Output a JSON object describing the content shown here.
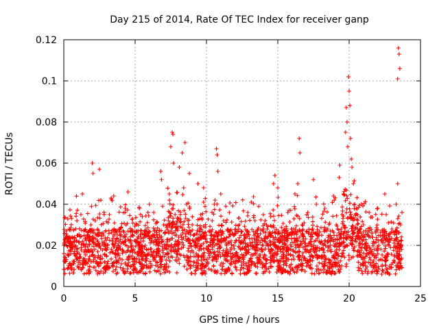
{
  "chart_data": {
    "type": "scatter",
    "title": "Day 215 of 2014, Rate Of TEC Index for receiver ganp",
    "xlabel": "GPS time / hours",
    "ylabel": "ROTI / TECUs",
    "xlim": [
      0,
      25
    ],
    "ylim": [
      0,
      0.12
    ],
    "xticks": [
      0,
      5,
      10,
      15,
      20,
      25
    ],
    "yticks": [
      0,
      0.02,
      0.04,
      0.06,
      0.08,
      0.1,
      0.12
    ],
    "xtick_labels": [
      "0",
      "5",
      "10",
      "15",
      "20",
      "25"
    ],
    "ytick_labels": [
      "0",
      "0.02",
      "0.04",
      "0.06",
      "0.08",
      "0.1",
      "0.12"
    ],
    "grid": true,
    "marker": "+",
    "color": "#ff0000",
    "series": [
      {
        "name": "ROTI",
        "points": [
          [
            0.1,
            0.012
          ],
          [
            0.2,
            0.02
          ],
          [
            0.3,
            0.009
          ],
          [
            0.5,
            0.016
          ],
          [
            0.7,
            0.011
          ],
          [
            0.9,
            0.022
          ],
          [
            1.1,
            0.014
          ],
          [
            1.2,
            0.035
          ],
          [
            1.3,
            0.045
          ],
          [
            1.5,
            0.018
          ],
          [
            1.7,
            0.012
          ],
          [
            1.9,
            0.03
          ],
          [
            2.0,
            0.06
          ],
          [
            2.05,
            0.055
          ],
          [
            2.2,
            0.032
          ],
          [
            2.3,
            0.025
          ],
          [
            2.5,
            0.057
          ],
          [
            2.6,
            0.042
          ],
          [
            2.8,
            0.02
          ],
          [
            3.0,
            0.015
          ],
          [
            3.2,
            0.035
          ],
          [
            3.4,
            0.022
          ],
          [
            3.5,
            0.044
          ],
          [
            3.7,
            0.012
          ],
          [
            3.9,
            0.028
          ],
          [
            4.1,
            0.018
          ],
          [
            4.3,
            0.038
          ],
          [
            4.5,
            0.046
          ],
          [
            4.7,
            0.022
          ],
          [
            4.9,
            0.01
          ],
          [
            5.1,
            0.03
          ],
          [
            5.3,
            0.013
          ],
          [
            5.5,
            0.034
          ],
          [
            5.7,
            0.02
          ],
          [
            5.9,
            0.026
          ],
          [
            6.0,
            0.04
          ],
          [
            6.1,
            0.015
          ],
          [
            6.3,
            0.036
          ],
          [
            6.5,
            0.018
          ],
          [
            6.7,
            0.025
          ],
          [
            6.8,
            0.056
          ],
          [
            6.85,
            0.052
          ],
          [
            7.0,
            0.03
          ],
          [
            7.2,
            0.02
          ],
          [
            7.4,
            0.045
          ],
          [
            7.5,
            0.068
          ],
          [
            7.6,
            0.075
          ],
          [
            7.65,
            0.074
          ],
          [
            7.7,
            0.06
          ],
          [
            7.8,
            0.035
          ],
          [
            7.9,
            0.025
          ],
          [
            8.1,
            0.058
          ],
          [
            8.3,
            0.065
          ],
          [
            8.4,
            0.048
          ],
          [
            8.5,
            0.07
          ],
          [
            8.6,
            0.04
          ],
          [
            8.8,
            0.055
          ],
          [
            9.0,
            0.03
          ],
          [
            9.2,
            0.02
          ],
          [
            9.4,
            0.05
          ],
          [
            9.6,
            0.035
          ],
          [
            9.8,
            0.048
          ],
          [
            10.0,
            0.025
          ],
          [
            10.2,
            0.015
          ],
          [
            10.4,
            0.032
          ],
          [
            10.6,
            0.042
          ],
          [
            10.7,
            0.067
          ],
          [
            10.75,
            0.064
          ],
          [
            10.8,
            0.056
          ],
          [
            11.0,
            0.045
          ],
          [
            11.2,
            0.032
          ],
          [
            11.4,
            0.02
          ],
          [
            11.6,
            0.036
          ],
          [
            11.8,
            0.026
          ],
          [
            12.0,
            0.015
          ],
          [
            12.3,
            0.03
          ],
          [
            12.6,
            0.012
          ],
          [
            12.9,
            0.036
          ],
          [
            13.1,
            0.02
          ],
          [
            13.4,
            0.032
          ],
          [
            13.7,
            0.018
          ],
          [
            14.0,
            0.028
          ],
          [
            14.2,
            0.013
          ],
          [
            14.5,
            0.034
          ],
          [
            14.7,
            0.05
          ],
          [
            14.8,
            0.054
          ],
          [
            15.0,
            0.048
          ],
          [
            15.2,
            0.022
          ],
          [
            15.5,
            0.012
          ],
          [
            15.7,
            0.036
          ],
          [
            16.0,
            0.026
          ],
          [
            16.2,
            0.045
          ],
          [
            16.4,
            0.05
          ],
          [
            16.5,
            0.072
          ],
          [
            16.55,
            0.065
          ],
          [
            16.7,
            0.03
          ],
          [
            16.9,
            0.018
          ],
          [
            17.1,
            0.036
          ],
          [
            17.3,
            0.022
          ],
          [
            17.5,
            0.052
          ],
          [
            17.7,
            0.04
          ],
          [
            17.9,
            0.025
          ],
          [
            18.1,
            0.015
          ],
          [
            18.3,
            0.038
          ],
          [
            18.5,
            0.028
          ],
          [
            18.7,
            0.018
          ],
          [
            18.9,
            0.044
          ],
          [
            19.1,
            0.03
          ],
          [
            19.3,
            0.053
          ],
          [
            19.35,
            0.059
          ],
          [
            19.5,
            0.035
          ],
          [
            19.6,
            0.045
          ],
          [
            19.75,
            0.075
          ],
          [
            19.8,
            0.087
          ],
          [
            19.85,
            0.08
          ],
          [
            19.9,
            0.068
          ],
          [
            19.95,
            0.102
          ],
          [
            20.0,
            0.095
          ],
          [
            20.05,
            0.088
          ],
          [
            20.1,
            0.072
          ],
          [
            20.15,
            0.062
          ],
          [
            20.2,
            0.058
          ],
          [
            20.3,
            0.05
          ],
          [
            20.4,
            0.04
          ],
          [
            20.6,
            0.028
          ],
          [
            20.8,
            0.015
          ],
          [
            21.0,
            0.03
          ],
          [
            21.2,
            0.018
          ],
          [
            21.4,
            0.036
          ],
          [
            21.6,
            0.026
          ],
          [
            21.8,
            0.014
          ],
          [
            22.0,
            0.038
          ],
          [
            22.3,
            0.022
          ],
          [
            22.5,
            0.045
          ],
          [
            22.6,
            0.035
          ],
          [
            22.8,
            0.02
          ],
          [
            23.0,
            0.028
          ],
          [
            23.2,
            0.012
          ],
          [
            23.3,
            0.04
          ],
          [
            23.4,
            0.05
          ],
          [
            23.45,
            0.116
          ],
          [
            23.5,
            0.113
          ],
          [
            23.55,
            0.106
          ],
          [
            23.4,
            0.101
          ],
          [
            23.6,
            0.03
          ],
          [
            23.65,
            0.02
          ],
          [
            23.7,
            0.036
          ],
          [
            23.6,
            0.01
          ]
        ]
      }
    ]
  }
}
